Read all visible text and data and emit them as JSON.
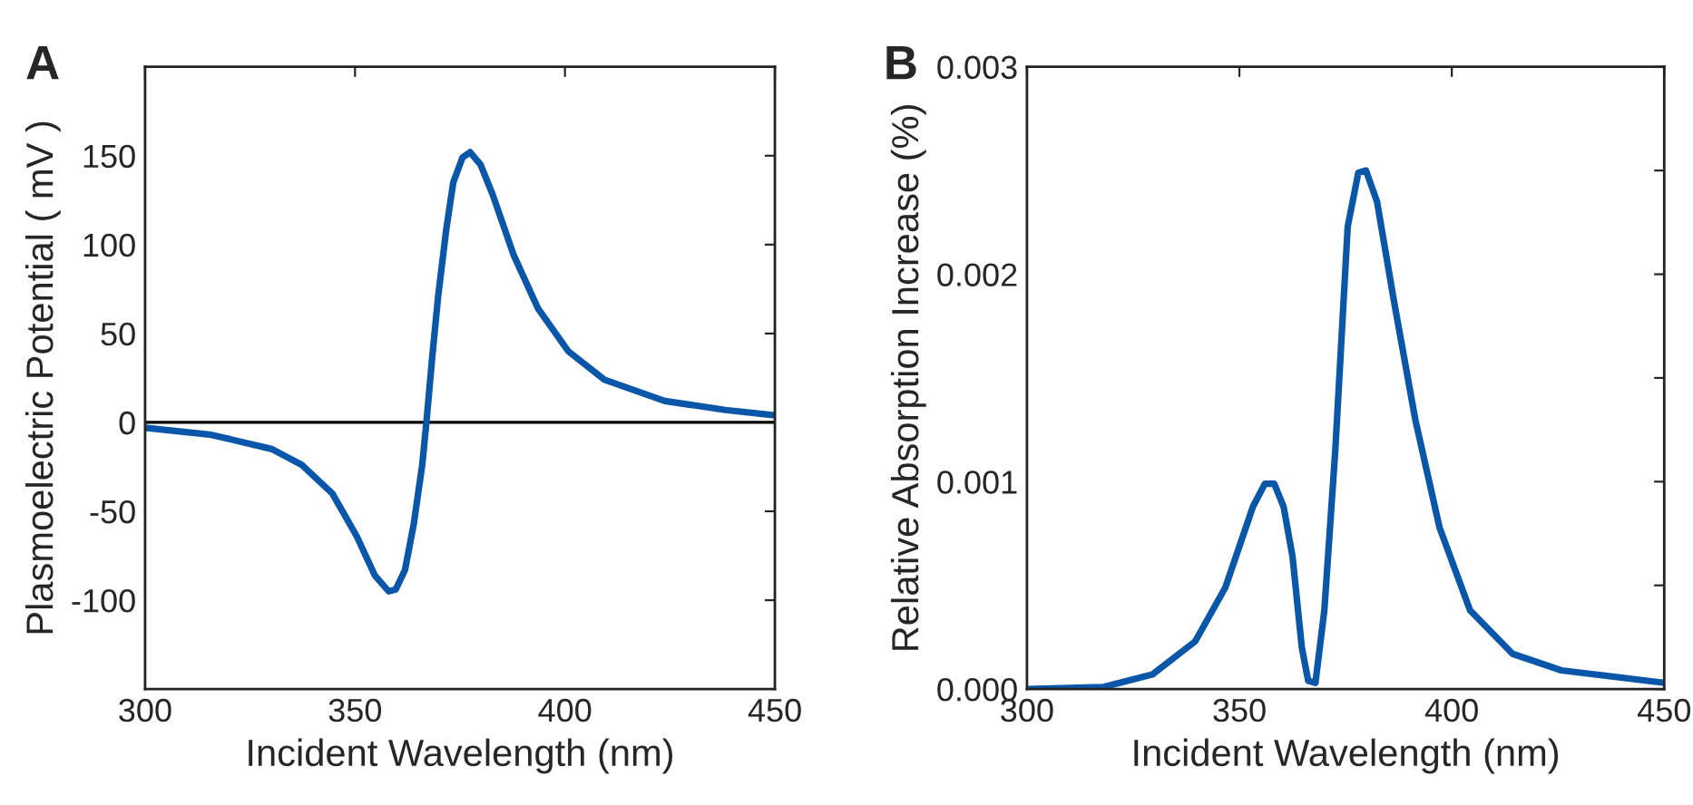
{
  "chart_data": [
    {
      "type": "line",
      "title": "A",
      "xlabel": "Incident Wavelength (nm)",
      "ylabel": "Plasmoelectric Potential ( mV )",
      "xlim": [
        300,
        450
      ],
      "ylim": [
        -150,
        200
      ],
      "xticks": [
        300,
        350,
        400,
        450
      ],
      "yticks": [
        -100,
        -50,
        0,
        50,
        100,
        150
      ],
      "grid": false,
      "legend": false,
      "marker": "none",
      "line_style": "solid",
      "ref_lines": [
        {
          "axis": "y",
          "value": 0,
          "color": "#000000"
        }
      ],
      "series": [
        {
          "color": "#0a56a8",
          "x": [
            300,
            315.8,
            330.2,
            337.4,
            344.6,
            350.4,
            354.7,
            358,
            359.7,
            361.9,
            364,
            366,
            367,
            368.4,
            369.8,
            371.7,
            373.4,
            375.6,
            377.4,
            379.9,
            382.8,
            387.8,
            393.6,
            400.8,
            409.4,
            423.8,
            438.2,
            450
          ],
          "values": [
            -3,
            -7,
            -15,
            -24,
            -40,
            -64,
            -86,
            -95,
            -94,
            -83,
            -57,
            -24,
            0,
            37,
            71,
            108,
            135,
            149,
            152,
            145,
            128,
            94,
            64,
            40,
            24,
            12,
            7,
            4
          ]
        }
      ]
    },
    {
      "type": "line",
      "title": "B",
      "xlabel": "Incident Wavelength (nm)",
      "ylabel": "Relative Absorption Increase (%)",
      "xlim": [
        300,
        450
      ],
      "ylim": [
        0,
        0.003
      ],
      "xticks": [
        300,
        350,
        400,
        450
      ],
      "yticks": [
        {
          "value": 0,
          "label": "0.000"
        },
        {
          "value": 0.0005,
          "label": null
        },
        {
          "value": 0.001,
          "label": "0.001"
        },
        {
          "value": 0.0015,
          "label": null
        },
        {
          "value": 0.002,
          "label": "0.002"
        },
        {
          "value": 0.0025,
          "label": null
        },
        {
          "value": 0.003,
          "label": "0.003"
        }
      ],
      "grid": false,
      "legend": false,
      "marker": "none",
      "line_style": "solid",
      "series": [
        {
          "color": "#0a56a8",
          "x": [
            300,
            318,
            329.5,
            339.6,
            346.7,
            353.2,
            356,
            358.2,
            360.4,
            362.5,
            364.7,
            366.2,
            367.9,
            370,
            372.6,
            375.5,
            378,
            379.8,
            382.4,
            386.3,
            391.4,
            397.1,
            404.3,
            414.3,
            425.8,
            450
          ],
          "values": [
            0,
            1e-05,
            7e-05,
            0.00023,
            0.00049,
            0.00088,
            0.00099,
            0.00099,
            0.00088,
            0.00064,
            0.0002,
            4e-05,
            3e-05,
            0.00038,
            0.00116,
            0.00223,
            0.00249,
            0.0025,
            0.00235,
            0.00188,
            0.0013,
            0.00078,
            0.00038,
            0.00017,
            9e-05,
            3e-05
          ]
        }
      ]
    }
  ]
}
